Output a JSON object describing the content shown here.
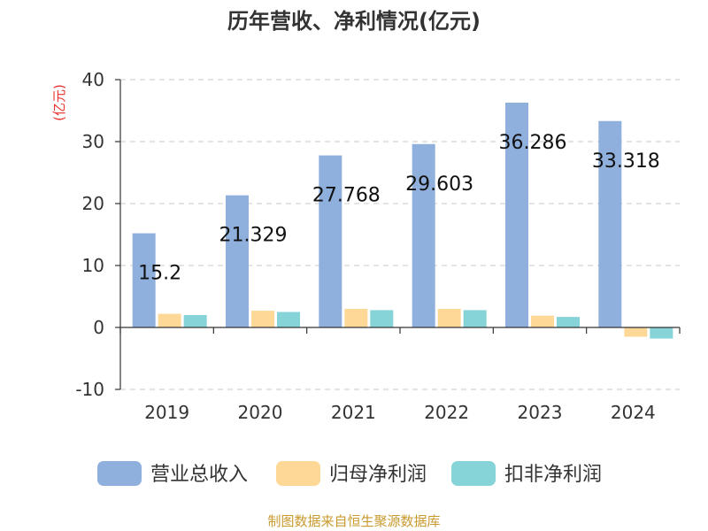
{
  "chart_data": {
    "type": "bar",
    "title": "历年营收、净利情况(亿元)",
    "unit_label": "(亿元)",
    "categories": [
      "2019",
      "2020",
      "2021",
      "2022",
      "2023",
      "2024"
    ],
    "series": [
      {
        "name": "营业总收入",
        "color": "#8fafdc",
        "values": [
          15.2,
          21.329,
          27.768,
          29.603,
          36.286,
          33.318
        ]
      },
      {
        "name": "归母净利润",
        "color": "#fdd897",
        "values": [
          2.2,
          2.7,
          3.0,
          3.0,
          1.9,
          -1.5
        ]
      },
      {
        "name": "扣非净利润",
        "color": "#86d4d8",
        "values": [
          2.0,
          2.5,
          2.8,
          2.8,
          1.7,
          -1.8
        ]
      }
    ],
    "data_labels": [
      "15.2",
      "21.329",
      "27.768",
      "29.603",
      "36.286",
      "33.318"
    ],
    "y_ticks": [
      "40",
      "30",
      "20",
      "10",
      "0",
      "-10"
    ],
    "ylim": [
      -10,
      40
    ],
    "grid": true,
    "legend_position": "bottom"
  },
  "source": "制图数据来自恒生聚源数据库"
}
